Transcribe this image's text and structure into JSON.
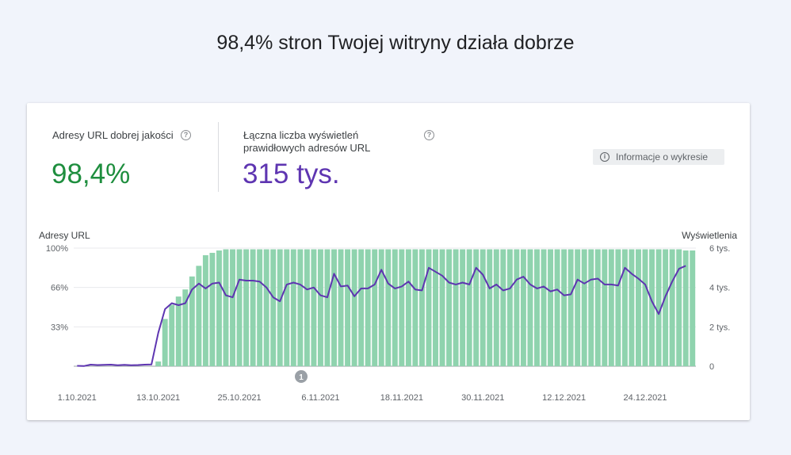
{
  "page": {
    "headline": "98,4% stron Twojej witryny działa dobrze"
  },
  "metrics": {
    "good_urls": {
      "label": "Adresy URL dobrej jakości",
      "value": "98,4%",
      "color": "#1e8e3e"
    },
    "impressions": {
      "label": "Łączna liczba wyświetleń prawidłowych adresów URL",
      "value": "315 tys.",
      "color": "#5e35b1"
    }
  },
  "info_button": {
    "label": "Informacje o wykresie",
    "icon": "info-icon"
  },
  "chart_data": {
    "type": "bar",
    "left_axis": {
      "title": "Adresy URL",
      "ticks": [
        "100%",
        "66%",
        "33%"
      ],
      "range": [
        0,
        100
      ]
    },
    "right_axis": {
      "title": "Wyświetlenia",
      "ticks": [
        "6 tys.",
        "4 tys.",
        "2 tys.",
        "0"
      ],
      "range": [
        0,
        6000
      ]
    },
    "x_ticks": [
      "1.10.2021",
      "13.10.2021",
      "25.10.2021",
      "6.11.2021",
      "18.11.2021",
      "30.11.2021",
      "12.12.2021",
      "24.12.2021"
    ],
    "annotation": "1",
    "colors": {
      "bars": "#8fd3ae",
      "line": "#5e35b1"
    },
    "series": [
      {
        "type": "bar",
        "axis": "left",
        "values": [
          0,
          0,
          0,
          0,
          0,
          0,
          0,
          0,
          0,
          0,
          0,
          0,
          4,
          40,
          52,
          59,
          65,
          76,
          85,
          94,
          96,
          98,
          99,
          99,
          99,
          99,
          99,
          99,
          99,
          99,
          99,
          99,
          99,
          99,
          99,
          99,
          99,
          99,
          99,
          99,
          99,
          99,
          99,
          99,
          99,
          99,
          99,
          99,
          99,
          99,
          99,
          99,
          99,
          99,
          99,
          99,
          99,
          99,
          99,
          99,
          99,
          99,
          99,
          99,
          99,
          99,
          99,
          99,
          99,
          99,
          99,
          99,
          99,
          99,
          99,
          99,
          99,
          99,
          99,
          99,
          99,
          99,
          99,
          99,
          99,
          99,
          99,
          99,
          99,
          99,
          98,
          98
        ]
      },
      {
        "type": "line",
        "axis": "right",
        "values": [
          20,
          10,
          80,
          60,
          70,
          80,
          50,
          70,
          50,
          60,
          80,
          90,
          1700,
          2900,
          3200,
          3100,
          3200,
          3900,
          4200,
          3950,
          4200,
          4250,
          3600,
          3500,
          4400,
          4350,
          4350,
          4300,
          4000,
          3500,
          3300,
          4150,
          4250,
          4150,
          3900,
          4000,
          3600,
          3500,
          4700,
          4050,
          4100,
          3550,
          3950,
          3950,
          4150,
          4900,
          4200,
          3950,
          4050,
          4300,
          3900,
          3850,
          5000,
          4800,
          4600,
          4250,
          4150,
          4250,
          4150,
          5000,
          4650,
          3950,
          4150,
          3850,
          3950,
          4400,
          4550,
          4150,
          3950,
          4050,
          3800,
          3900,
          3600,
          3650,
          4400,
          4200,
          4400,
          4450,
          4150,
          4150,
          4100,
          5000,
          4700,
          4450,
          4150,
          3300,
          2650,
          3550,
          4300,
          4950,
          5100
        ]
      }
    ]
  }
}
